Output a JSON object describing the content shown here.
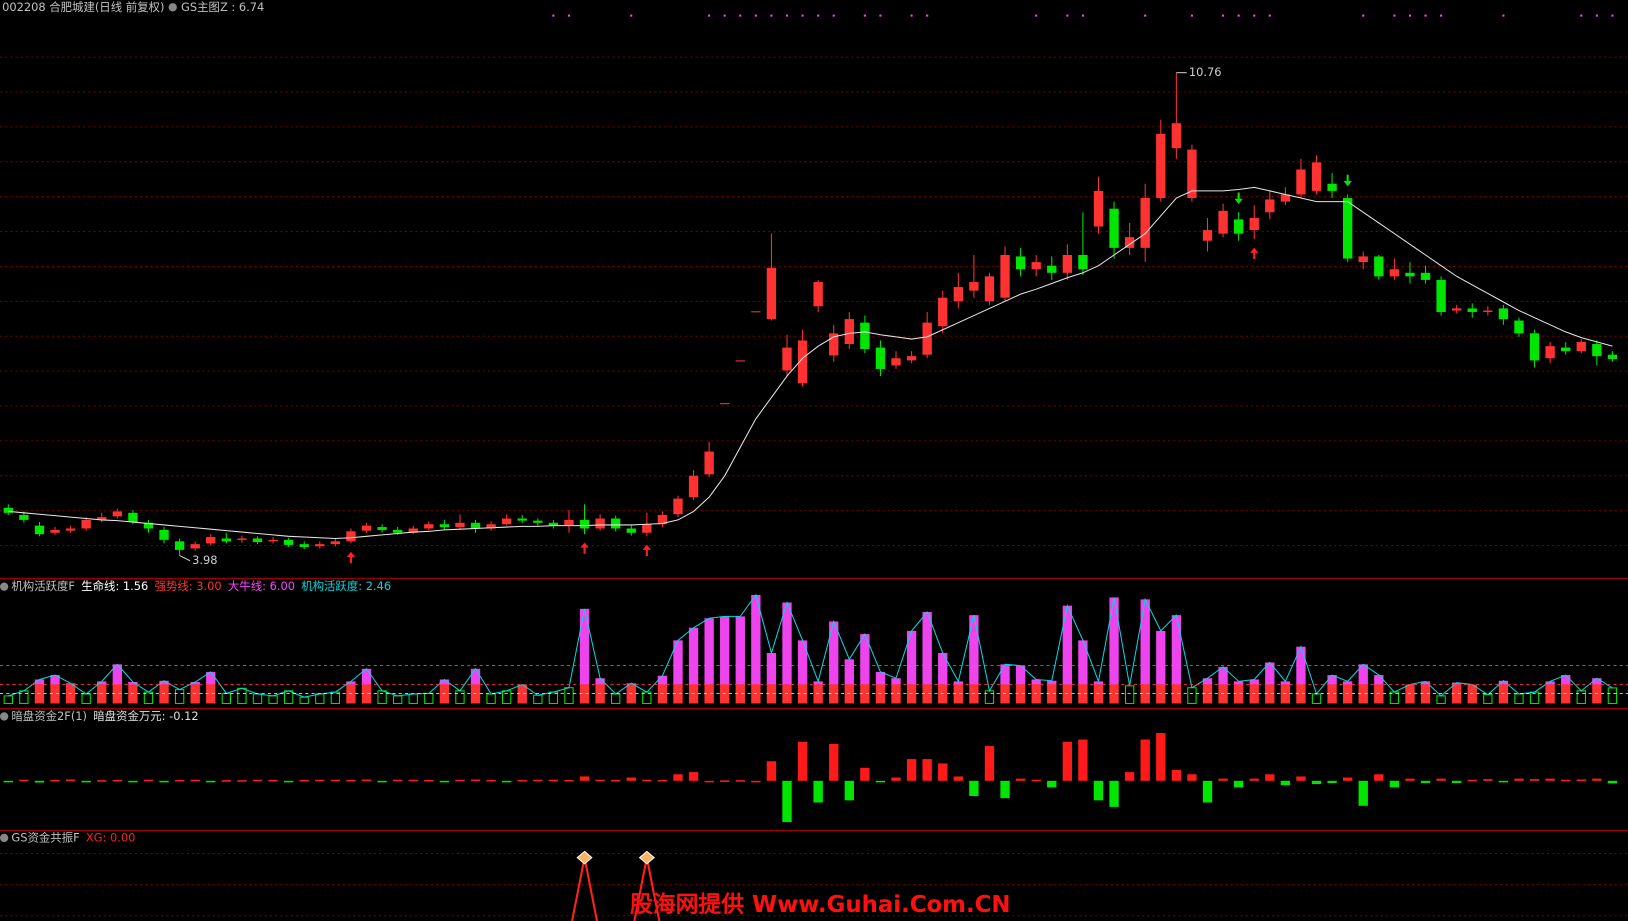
{
  "chart_data": [
    {
      "type": "candlestick",
      "title": "002208 合肥城建(日线 前复权)",
      "indicator": "GS主图Z : 6.74",
      "ylim": [
        3.66,
        11.78
      ],
      "up_color": "#ff3232",
      "down_color": "#00e600",
      "grid": true,
      "open": [
        4.65,
        4.55,
        4.4,
        4.3,
        4.33,
        4.36,
        4.48,
        4.53,
        4.58,
        4.44,
        4.34,
        4.18,
        4.08,
        4.15,
        4.22,
        4.2,
        4.22,
        4.18,
        4.2,
        4.14,
        4.11,
        4.14,
        4.18,
        4.33,
        4.38,
        4.34,
        4.3,
        4.36,
        4.42,
        4.38,
        4.44,
        4.36,
        4.42,
        4.5,
        4.47,
        4.44,
        4.4,
        4.48,
        4.36,
        4.5,
        4.36,
        4.3,
        4.42,
        4.56,
        4.8,
        5.12,
        6.12,
        6.72,
        7.41,
        7.3,
        6.58,
        6.4,
        7.48,
        6.79,
        6.95,
        7.25,
        6.9,
        6.65,
        6.72,
        6.8,
        7.2,
        7.55,
        7.7,
        7.55,
        7.6,
        8.18,
        8.0,
        8.05,
        7.95,
        8.2,
        8.6,
        8.85,
        8.3,
        8.3,
        9.0,
        9.7,
        9.0,
        8.4,
        8.5,
        8.7,
        8.55,
        8.8,
        8.95,
        9.05,
        9.1,
        9.2,
        9.0,
        8.1,
        8.18,
        7.9,
        7.95,
        7.95,
        7.85,
        7.42,
        7.45,
        7.4,
        7.45,
        7.28,
        7.1,
        6.75,
        6.9,
        6.85,
        6.95,
        6.8
      ],
      "close": [
        4.58,
        4.48,
        4.28,
        4.34,
        4.36,
        4.48,
        4.52,
        4.6,
        4.45,
        4.36,
        4.2,
        4.06,
        4.14,
        4.24,
        4.18,
        4.22,
        4.17,
        4.2,
        4.13,
        4.1,
        4.14,
        4.18,
        4.32,
        4.4,
        4.34,
        4.3,
        4.36,
        4.42,
        4.38,
        4.44,
        4.36,
        4.42,
        4.5,
        4.47,
        4.44,
        4.4,
        4.48,
        4.36,
        4.5,
        4.36,
        4.3,
        4.42,
        4.55,
        4.78,
        5.1,
        5.44,
        6.12,
        6.72,
        7.41,
        8.02,
        6.9,
        7.0,
        7.82,
        7.1,
        7.3,
        6.88,
        6.6,
        6.75,
        6.78,
        7.25,
        7.6,
        7.75,
        7.82,
        7.9,
        8.2,
        8.0,
        8.1,
        7.95,
        8.2,
        8.0,
        9.1,
        8.3,
        8.45,
        9.0,
        9.9,
        10.05,
        9.68,
        8.55,
        8.82,
        8.5,
        8.72,
        8.98,
        9.05,
        9.4,
        9.5,
        9.1,
        8.15,
        8.18,
        7.9,
        8.0,
        7.9,
        7.85,
        7.4,
        7.45,
        7.4,
        7.42,
        7.3,
        7.1,
        6.72,
        6.92,
        6.85,
        6.98,
        6.78,
        6.74
      ],
      "high": [
        4.7,
        4.6,
        4.45,
        4.38,
        4.4,
        4.52,
        4.58,
        4.64,
        4.62,
        4.48,
        4.38,
        4.22,
        4.18,
        4.28,
        4.3,
        4.26,
        4.25,
        4.24,
        4.23,
        4.18,
        4.18,
        4.22,
        4.36,
        4.44,
        4.42,
        4.38,
        4.4,
        4.46,
        4.48,
        4.56,
        4.48,
        4.46,
        4.56,
        4.55,
        4.5,
        4.48,
        4.62,
        4.7,
        4.56,
        4.54,
        4.4,
        4.58,
        4.6,
        4.82,
        5.18,
        5.58,
        6.12,
        6.72,
        7.41,
        8.5,
        7.08,
        7.15,
        7.85,
        7.22,
        7.4,
        7.35,
        7.0,
        6.85,
        6.85,
        7.4,
        7.7,
        7.95,
        8.2,
        7.95,
        8.32,
        8.3,
        8.2,
        8.18,
        8.35,
        8.8,
        9.3,
        8.95,
        8.65,
        9.2,
        10.1,
        10.76,
        9.75,
        8.72,
        8.92,
        8.8,
        8.9,
        9.1,
        9.15,
        9.55,
        9.6,
        9.35,
        9.05,
        8.25,
        8.2,
        8.15,
        8.1,
        8.05,
        7.9,
        7.5,
        7.52,
        7.48,
        7.5,
        7.32,
        7.15,
        6.98,
        6.98,
        7.02,
        7.0,
        6.85
      ],
      "low": [
        4.55,
        4.44,
        4.25,
        4.27,
        4.3,
        4.33,
        4.45,
        4.5,
        4.42,
        4.3,
        4.15,
        3.98,
        4.05,
        4.12,
        4.15,
        4.16,
        4.14,
        4.15,
        4.1,
        4.07,
        4.08,
        4.11,
        4.15,
        4.3,
        4.3,
        4.27,
        4.28,
        4.33,
        4.34,
        4.35,
        4.3,
        4.33,
        4.4,
        4.44,
        4.4,
        4.36,
        4.3,
        4.28,
        4.33,
        4.32,
        4.26,
        4.25,
        4.38,
        4.52,
        4.76,
        5.08,
        6.12,
        6.72,
        7.41,
        7.28,
        6.5,
        6.35,
        7.4,
        6.7,
        6.88,
        6.82,
        6.5,
        6.6,
        6.68,
        6.75,
        7.1,
        7.45,
        7.6,
        7.5,
        7.55,
        7.9,
        7.9,
        7.85,
        7.85,
        7.92,
        8.5,
        8.15,
        8.2,
        8.1,
        8.95,
        9.55,
        8.95,
        8.25,
        8.45,
        8.4,
        8.42,
        8.7,
        8.9,
        9.0,
        9.05,
        9.0,
        8.1,
        8.0,
        7.85,
        7.85,
        7.8,
        7.8,
        7.35,
        7.38,
        7.32,
        7.35,
        7.22,
        7.05,
        6.62,
        6.68,
        6.8,
        6.82,
        6.65,
        6.7
      ],
      "ma": {
        "color": "#e6e6e6",
        "values": [
          4.6,
          4.58,
          4.56,
          4.54,
          4.52,
          4.5,
          4.48,
          4.47,
          4.45,
          4.43,
          4.41,
          4.39,
          4.37,
          4.35,
          4.33,
          4.31,
          4.29,
          4.27,
          4.25,
          4.24,
          4.23,
          4.22,
          4.23,
          4.25,
          4.27,
          4.29,
          4.31,
          4.32,
          4.34,
          4.35,
          4.36,
          4.37,
          4.38,
          4.39,
          4.39,
          4.4,
          4.4,
          4.4,
          4.41,
          4.41,
          4.41,
          4.42,
          4.43,
          4.48,
          4.6,
          4.8,
          5.1,
          5.5,
          5.9,
          6.2,
          6.5,
          6.75,
          6.92,
          7.05,
          7.1,
          7.12,
          7.08,
          7.05,
          7.02,
          7.05,
          7.15,
          7.25,
          7.35,
          7.45,
          7.55,
          7.65,
          7.72,
          7.8,
          7.88,
          7.95,
          8.05,
          8.2,
          8.35,
          8.5,
          8.75,
          9.0,
          9.1,
          9.1,
          9.1,
          9.12,
          9.15,
          9.1,
          9.05,
          9.0,
          8.95,
          8.95,
          8.95,
          8.8,
          8.65,
          8.5,
          8.35,
          8.2,
          8.05,
          7.9,
          7.78,
          7.66,
          7.54,
          7.42,
          7.32,
          7.22,
          7.12,
          7.04,
          6.98,
          6.92
        ]
      },
      "annotations": [
        {
          "index": 75,
          "value": 10.76
        },
        {
          "index": 11,
          "value": 3.98
        }
      ],
      "buy_signals": [
        22,
        37,
        41,
        80
      ],
      "sell_signals": [
        79,
        86
      ],
      "top_markers": [
        35,
        36,
        40,
        45,
        46,
        47,
        48,
        49,
        50,
        51,
        52,
        53,
        55,
        56,
        58,
        59,
        66,
        68,
        69,
        73,
        76,
        78,
        79,
        80,
        81,
        87,
        89,
        90,
        91,
        92,
        96,
        101,
        102,
        103
      ],
      "marker_color": "#ff40ff"
    },
    {
      "type": "bar",
      "title": "机构活跃度F",
      "ylim": [
        -0.74,
        17.2
      ],
      "lines": [
        {
          "label": "生命线: 1.56",
          "value": 1.56,
          "color": "#ffffff"
        },
        {
          "label": "强势线: 3.00",
          "value": 3.0,
          "color": "#ff3232"
        },
        {
          "label": "大牛线: 6.00",
          "value": 6.0,
          "color": "#ff40ff"
        }
      ],
      "series": [
        {
          "label": "机构活跃度: 2.46",
          "color": "#00d8e0",
          "low_color": "#00e600",
          "high_color": "#ee44ee",
          "values": [
            1.2,
            2.0,
            3.8,
            4.5,
            3.2,
            1.5,
            3.5,
            6.2,
            3.4,
            1.8,
            3.6,
            2.2,
            3.4,
            5.0,
            1.6,
            2.4,
            1.5,
            1.2,
            2.0,
            1.0,
            1.5,
            1.8,
            3.5,
            5.5,
            2.0,
            1.2,
            1.5,
            1.6,
            3.8,
            2.0,
            5.5,
            1.5,
            2.0,
            3.0,
            1.3,
            1.8,
            2.5,
            15.0,
            4.0,
            1.5,
            3.2,
            1.8,
            4.4,
            10.0,
            12.0,
            13.5,
            13.8,
            13.8,
            17.2,
            8.0,
            16.0,
            10.0,
            3.5,
            13.0,
            7.0,
            11.0,
            5.0,
            4.0,
            11.5,
            14.5,
            8.0,
            3.5,
            14.0,
            2.0,
            6.2,
            6.0,
            3.8,
            3.6,
            15.5,
            10.0,
            3.5,
            16.8,
            2.8,
            16.5,
            11.5,
            14.0,
            2.5,
            4.0,
            5.8,
            3.5,
            3.8,
            6.5,
            3.5,
            9.0,
            1.5,
            4.5,
            3.5,
            6.2,
            4.5,
            1.8,
            3.0,
            3.5,
            1.2,
            3.3,
            3.0,
            1.4,
            3.6,
            1.5,
            1.8,
            3.5,
            4.5,
            2.0,
            4.0,
            2.46
          ]
        }
      ]
    },
    {
      "type": "bar",
      "title": "暗盘资金2F(1)",
      "ylim": [
        -2.2,
        2.2
      ],
      "series": [
        {
          "label": "暗盘资金万元: -0.12",
          "up_color": "#ff1a1a",
          "down_color": "#00e600",
          "values": [
            -0.05,
            0.05,
            -0.08,
            0.04,
            0.06,
            -0.06,
            0.03,
            0.04,
            -0.02,
            0.05,
            -0.03,
            0.04,
            0.05,
            -0.04,
            0.03,
            0.03,
            0.05,
            0.04,
            -0.03,
            0.04,
            0.05,
            0.05,
            0.04,
            0.06,
            -0.05,
            0.05,
            0.05,
            0.04,
            -0.03,
            0.05,
            0.06,
            0.04,
            -0.03,
            0.04,
            0.05,
            0.05,
            0.04,
            0.2,
            0.05,
            0.04,
            0.15,
            0.05,
            0.04,
            0.3,
            0.4,
            0.0,
            0.02,
            0.03,
            0.0,
            0.9,
            -1.9,
            1.8,
            -1.0,
            1.7,
            -0.9,
            0.6,
            -0.05,
            0.15,
            1.0,
            1.0,
            0.8,
            0.2,
            -0.7,
            1.6,
            -0.8,
            0.1,
            0.05,
            -0.3,
            1.8,
            1.9,
            -0.9,
            -1.2,
            0.4,
            1.9,
            2.2,
            0.5,
            0.3,
            -1.0,
            0.1,
            -0.3,
            0.1,
            0.3,
            -0.2,
            0.2,
            -0.15,
            -0.1,
            0.15,
            -1.15,
            0.3,
            -0.3,
            0.1,
            -0.1,
            0.1,
            -0.1,
            0.05,
            0.08,
            -0.05,
            0.1,
            0.08,
            0.1,
            0.05,
            0.06,
            0.1,
            -0.12
          ]
        }
      ]
    },
    {
      "type": "signal",
      "title": "GS资金共振F",
      "label": "XG: 0.00",
      "color": "#ff2020",
      "signals": [
        37,
        41
      ]
    }
  ],
  "watermark": "股海网提供 Www.Guhai.Com.CN"
}
